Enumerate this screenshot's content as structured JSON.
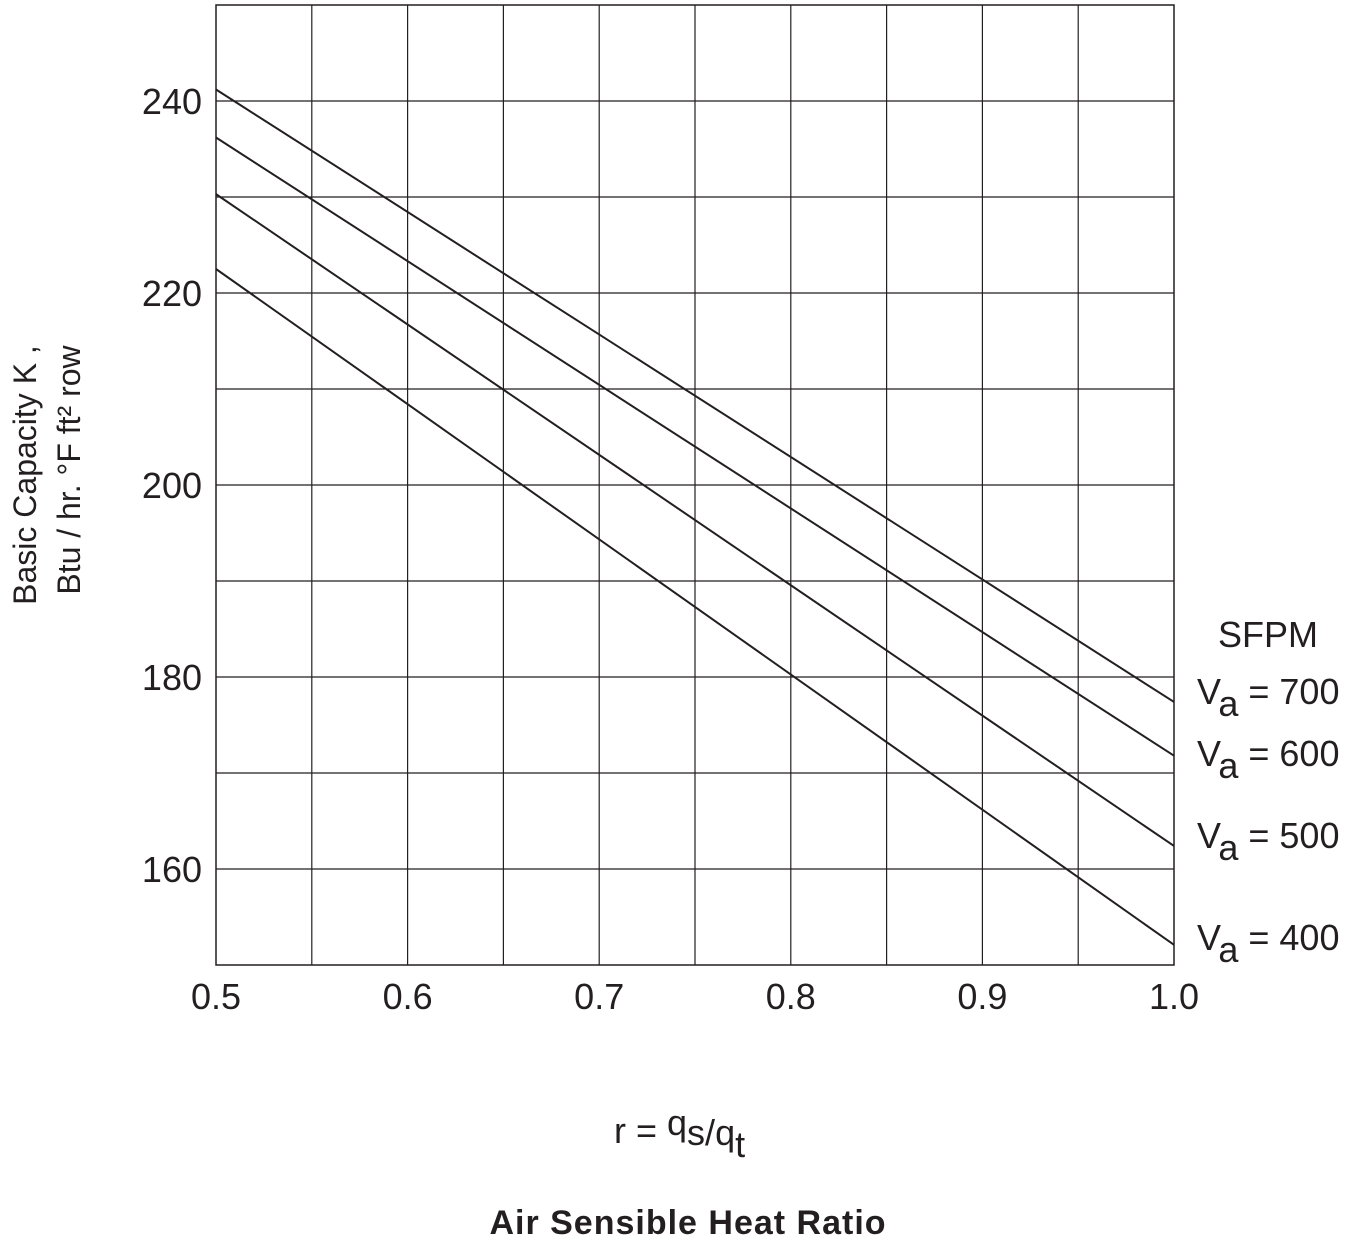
{
  "chart_data": {
    "type": "line",
    "title": "Air Sensible Heat Ratio",
    "xlabel_formula": {
      "prefix": "r = ",
      "q1": "q",
      "s1": "s",
      "slash": "/",
      "q2": "q",
      "s2": "t"
    },
    "ylabel_lines": [
      "Basic Capacity K ,",
      "Btu / hr. °F ft² row"
    ],
    "xlim": [
      0.5,
      1.0
    ],
    "ylim": [
      150,
      250
    ],
    "x_ticks": [
      "0.5",
      "0.6",
      "0.7",
      "0.8",
      "0.9",
      "1.0"
    ],
    "y_ticks": [
      "160",
      "180",
      "200",
      "220",
      "240"
    ],
    "x_grid_step": 0.05,
    "y_grid_step": 10,
    "grid": true,
    "legend_title": "SFPM",
    "legend_placement": "right",
    "series": [
      {
        "name": "Va = 700",
        "sym": "V",
        "sub": "a",
        "rest": " = 700",
        "x": [
          0.5,
          1.0
        ],
        "y": [
          241.2,
          177.4
        ]
      },
      {
        "name": "Va = 600",
        "sym": "V",
        "sub": "a",
        "rest": " = 600",
        "x": [
          0.5,
          1.0
        ],
        "y": [
          236.2,
          171.8
        ]
      },
      {
        "name": "Va = 500",
        "sym": "V",
        "sub": "a",
        "rest": " = 500",
        "x": [
          0.5,
          1.0
        ],
        "y": [
          230.3,
          162.4
        ]
      },
      {
        "name": "Va = 400",
        "sym": "V",
        "sub": "a",
        "rest": " = 400",
        "x": [
          0.5,
          1.0
        ],
        "y": [
          222.5,
          152.1
        ]
      }
    ],
    "line_color": "#231f20",
    "grid_color": "#231f20"
  }
}
